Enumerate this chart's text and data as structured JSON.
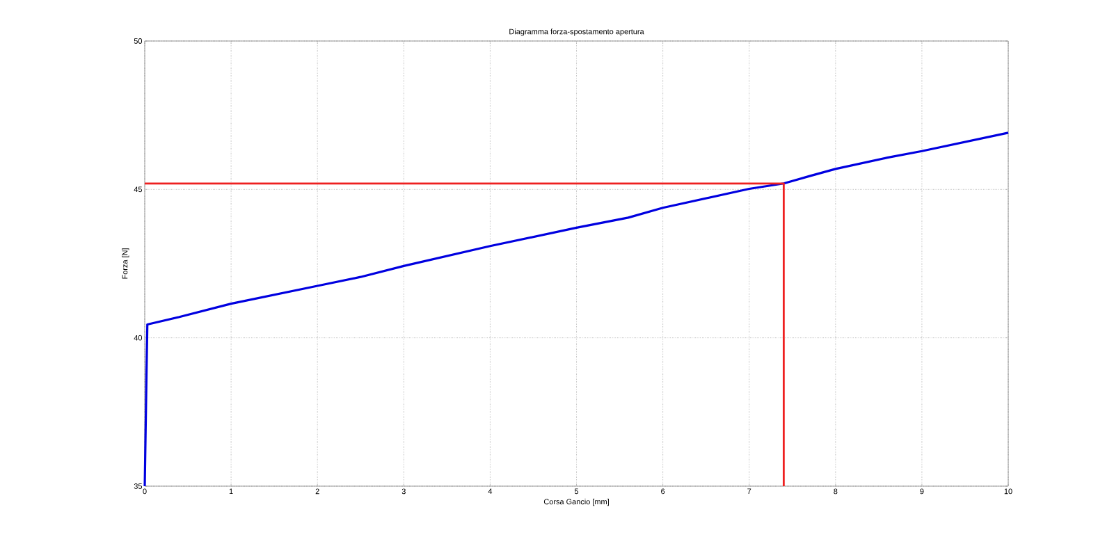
{
  "chart_data": {
    "type": "line",
    "title": "Diagramma forza-spostamento apertura",
    "xlabel": "Corsa Gancio [mm]",
    "ylabel": "Forza [N]",
    "xlim": [
      0,
      10
    ],
    "ylim": [
      35,
      50
    ],
    "xticks": [
      0,
      1,
      2,
      3,
      4,
      5,
      6,
      7,
      8,
      9,
      10
    ],
    "yticks": [
      35,
      40,
      45,
      50
    ],
    "grid": true,
    "line_style": "solid",
    "marker": "none",
    "series": [
      {
        "color": "#0000e0",
        "x": [
          0,
          0.02,
          0.03,
          0.4,
          1,
          2,
          2.5,
          3,
          4,
          5,
          5.6,
          6,
          7,
          7.4,
          7.7,
          8,
          8.6,
          9,
          10
        ],
        "values": [
          35,
          38.7,
          40.45,
          40.7,
          41.15,
          41.75,
          42.05,
          42.42,
          43.09,
          43.71,
          44.05,
          44.38,
          45.02,
          45.2,
          45.45,
          45.69,
          46.07,
          46.29,
          46.91
        ]
      },
      {
        "color": "#ee2020",
        "x": [
          0,
          7.4,
          7.4
        ],
        "values": [
          45.2,
          45.2,
          35
        ]
      }
    ]
  }
}
